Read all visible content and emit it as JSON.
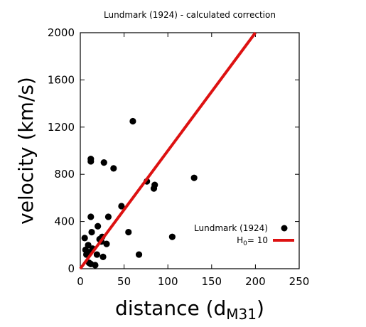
{
  "chart_data": {
    "type": "scatter",
    "title": "Lundmark (1924) - calculated correction",
    "xlabel_main": "distance (d",
    "xlabel_sub": "M31",
    "xlabel_close": ")",
    "ylabel": "velocity (km/s)",
    "xlim": [
      0,
      250
    ],
    "ylim": [
      0,
      2000
    ],
    "xticks": [
      0,
      50,
      100,
      150,
      200,
      250
    ],
    "yticks": [
      0,
      400,
      800,
      1200,
      1600,
      2000
    ],
    "grid": false,
    "legend_position": "bottom-right",
    "series": [
      {
        "name": "Lundmark (1924)",
        "kind": "points",
        "color": "#000000",
        "points": [
          [
            5,
            260
          ],
          [
            6,
            160
          ],
          [
            7,
            120
          ],
          [
            9,
            200
          ],
          [
            10,
            50
          ],
          [
            11,
            140
          ],
          [
            12,
            440
          ],
          [
            12,
            930
          ],
          [
            12,
            910
          ],
          [
            12,
            40
          ],
          [
            13,
            310
          ],
          [
            14,
            170
          ],
          [
            17,
            30
          ],
          [
            19,
            120
          ],
          [
            20,
            360
          ],
          [
            22,
            250
          ],
          [
            24,
            230
          ],
          [
            25,
            270
          ],
          [
            26,
            100
          ],
          [
            27,
            900
          ],
          [
            30,
            210
          ],
          [
            32,
            440
          ],
          [
            38,
            850
          ],
          [
            47,
            530
          ],
          [
            55,
            310
          ],
          [
            60,
            1250
          ],
          [
            67,
            120
          ],
          [
            76,
            740
          ],
          [
            84,
            680
          ],
          [
            85,
            710
          ],
          [
            105,
            270
          ],
          [
            130,
            770
          ]
        ]
      },
      {
        "name_main": "H",
        "name_sub": "0",
        "name_value": "=  10",
        "kind": "line",
        "color": "#dd1111",
        "slope": 10
      }
    ]
  }
}
